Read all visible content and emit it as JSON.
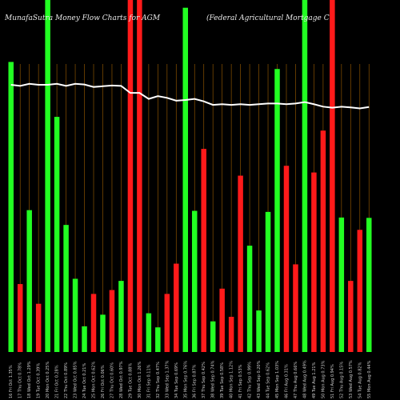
{
  "header": {
    "left": "MunafaSutra  Money Flow  Charts for AGM",
    "right": "(Federal Agricultural Mortgage C"
  },
  "colors": {
    "background": "#000000",
    "up": "#22ff22",
    "down": "#ff1a1a",
    "grid": "#8a5200",
    "line": "#ffffff",
    "text": "#e8e8e8"
  },
  "chart_data": {
    "type": "bar",
    "title": "MunafaSutra  Money Flow  Charts for AGM",
    "subtitle": "(Federal Agricultural Mortgage C",
    "xlabel": "",
    "ylabel": "",
    "ylim": [
      0,
      100
    ],
    "grid": true,
    "categories": [
      "16 Fri Oct 1.35%",
      "17 Thu Oct 0.78%",
      "18 Wed Oct 1.29%",
      "19 Tue Oct 0.39%",
      "20 Mon Oct 0.25%",
      "21 Fri Oct 0.28%",
      "22 Thu Oct 0.89%",
      "23 Wed Oct 0.85%",
      "24 Tue Oct 0.21%",
      "25 Mon Oct 0.62%",
      "26 Fri Oct 0.06%",
      "27 Thu Oct 0.60%",
      "28 Wed Oct 0.97%",
      "29 Tue Oct 0.88%",
      "30 Mon Oct 1.26%",
      "31 Fri Sep 0.11%",
      "32 Thu Sep 0.47%",
      "33 Wed Sep 1.37%",
      "34 Tue Sep 0.69%",
      "35 Mon Sep 0.76%",
      "36 Fri Sep 0.87%",
      "37 Thu Sep 0.42%",
      "38 Wed Sep 0.74%",
      "39 Tue Sep 0.58%",
      "40 Mon Sep 1.12%",
      "41 Fri Sep 0.53%",
      "42 Thu Sep 0.99%",
      "43 Wed Sep 0.20%",
      "44 Tue Sep 0.62%",
      "45 Mon Sep 1.03%",
      "46 Fri Aug 0.31%",
      "47 Thu Aug 0.66%",
      "48 Wed Aug 0.49%",
      "49 Tue Aug 1.21%",
      "50 Mon Aug 0.73%",
      "51 Fri Aug 0.94%",
      "52 Thu Aug 0.15%",
      "53 Wed Aug 0.57%",
      "54 Tue Aug 0.82%",
      "55 Mon Aug 0.44%"
    ],
    "series": [
      {
        "values": [
          82.4,
          19.3,
          40.3,
          13.7,
          100,
          66.8,
          36.1,
          20.8,
          7.3,
          16.5,
          10.6,
          17.6,
          20.2,
          100,
          100,
          11.0,
          7.0,
          16.5,
          25.1,
          97.8,
          40.1,
          57.7,
          8.7,
          18.0,
          10.0,
          50.1,
          30.2,
          11.8,
          39.8,
          80.4,
          52.9,
          24.9,
          100,
          51.0,
          62.9,
          100,
          38.2,
          20.2,
          34.7,
          38.1
        ],
        "colors": [
          "up",
          "down",
          "up",
          "down",
          "up",
          "up",
          "up",
          "up",
          "up",
          "down",
          "up",
          "down",
          "up",
          "down",
          "down",
          "up",
          "up",
          "down",
          "down",
          "up",
          "up",
          "down",
          "up",
          "down",
          "down",
          "down",
          "up",
          "up",
          "up",
          "up",
          "down",
          "down",
          "up",
          "down",
          "down",
          "down",
          "up",
          "down",
          "down",
          "up"
        ]
      },
      {
        "type": "line",
        "values": [
          75.9,
          75.6,
          76.2,
          75.9,
          75.9,
          76.2,
          75.6,
          76.2,
          76.0,
          75.3,
          75.5,
          75.7,
          75.6,
          73.6,
          73.6,
          71.9,
          72.7,
          72.2,
          71.4,
          71.6,
          71.9,
          71.2,
          70.2,
          70.4,
          70.2,
          70.4,
          70.2,
          70.4,
          70.6,
          70.6,
          70.4,
          70.6,
          71.0,
          70.4,
          69.7,
          69.4,
          69.7,
          69.5,
          69.2,
          69.6
        ]
      }
    ]
  }
}
